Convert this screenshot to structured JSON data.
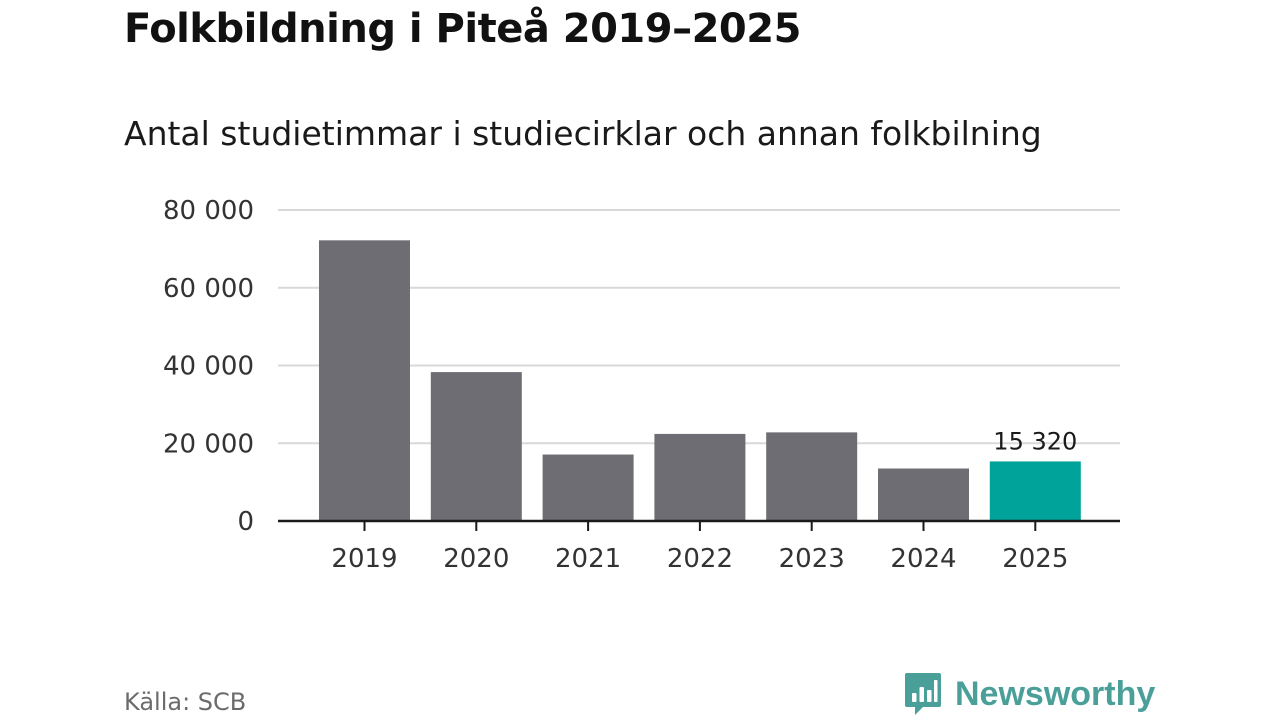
{
  "chart_data": {
    "type": "bar",
    "title": "Folkbildning i Piteå 2019–2025",
    "subtitle": "Antal studietimmar i studiecirklar och annan folkbilning",
    "categories": [
      "2019",
      "2020",
      "2021",
      "2022",
      "2023",
      "2024",
      "2025"
    ],
    "values": [
      72200,
      38300,
      17100,
      22400,
      22800,
      13500,
      15320
    ],
    "ylim": [
      0,
      80000
    ],
    "yticks": [
      0,
      20000,
      40000,
      60000,
      80000
    ],
    "ytick_labels": [
      "0",
      "20 000",
      "40 000",
      "60 000",
      "80 000"
    ],
    "grid": true,
    "highlight_index": 6,
    "data_labels": [
      {
        "index": 6,
        "text": "15 320"
      }
    ],
    "colors": {
      "bar": "#6e6d73",
      "highlight": "#00a39a",
      "grid": "#d9d9d9",
      "axis": "#1a1a1a"
    }
  },
  "footer": {
    "source": "Källa: SCB",
    "brand": "Newsworthy",
    "brand_icon": "newsworthy-logo-icon",
    "brand_color": "#4a9f99"
  }
}
